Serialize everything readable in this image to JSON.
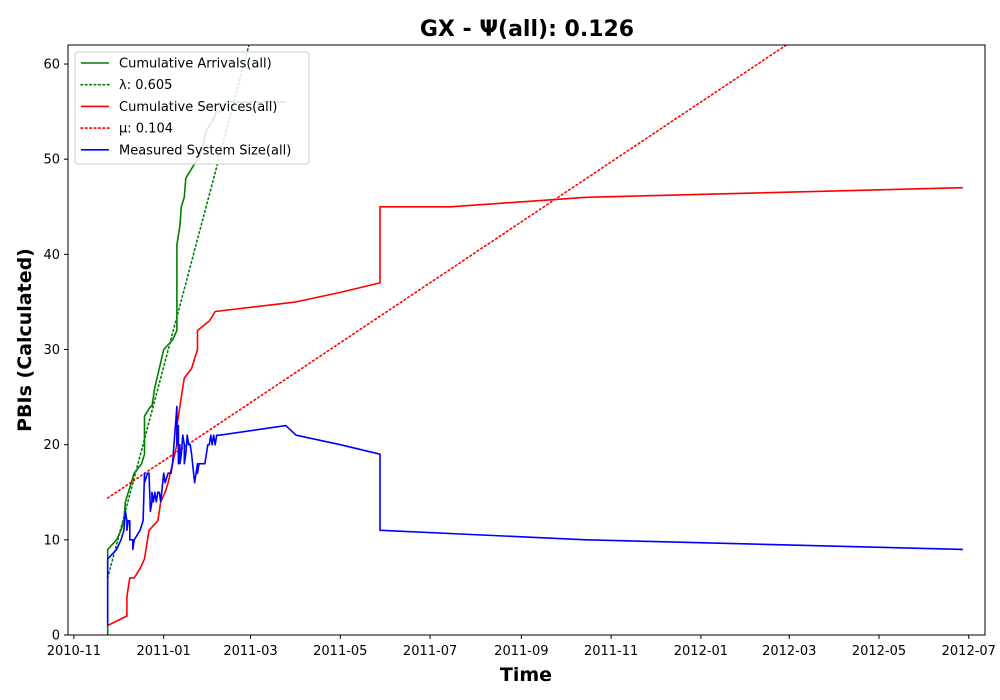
{
  "chart_data": {
    "type": "line",
    "title": "GX -  Ψ(all): 0.126",
    "xlabel": "Time",
    "ylabel": "PBIs (Calculated)",
    "x_axis": "date",
    "xlim": [
      "2010-10-28",
      "2012-07-12"
    ],
    "ylim": [
      0,
      62
    ],
    "grid": false,
    "legend_position": "top-left",
    "x_ticks": [
      "2010-11-01",
      "2011-01-01",
      "2011-03-01",
      "2011-05-01",
      "2011-07-01",
      "2011-09-01",
      "2011-11-01",
      "2012-01-01",
      "2012-03-01",
      "2012-05-01",
      "2012-07-01"
    ],
    "x_tick_labels": [
      "2010-11",
      "2011-01",
      "2011-03",
      "2011-05",
      "2011-07",
      "2011-09",
      "2011-11",
      "2012-01",
      "2012-03",
      "2012-05",
      "2012-07"
    ],
    "y_ticks": [
      0,
      10,
      20,
      30,
      40,
      50,
      60
    ],
    "y_tick_labels": [
      "0",
      "10",
      "20",
      "30",
      "40",
      "50",
      "60"
    ],
    "series": [
      {
        "name": "Cumulative Arrivals(all)",
        "color": "#008000",
        "style": "solid",
        "x": [
          "2010-11-24",
          "2010-11-24",
          "2010-11-30",
          "2010-12-03",
          "2010-12-05",
          "2010-12-06",
          "2010-12-08",
          "2010-12-12",
          "2010-12-17",
          "2010-12-19",
          "2010-12-19",
          "2010-12-23",
          "2010-12-24",
          "2010-12-26",
          "2010-12-29",
          "2011-01-01",
          "2011-01-07",
          "2011-01-10",
          "2011-01-10",
          "2011-01-12",
          "2011-01-13",
          "2011-01-15",
          "2011-01-16",
          "2011-01-20",
          "2011-01-24",
          "2011-01-27",
          "2011-01-30",
          "2011-02-03",
          "2011-02-06",
          "2011-02-09",
          "2011-02-12",
          "2011-02-16",
          "2011-02-22",
          "2011-03-01",
          "2011-03-08",
          "2011-03-15",
          "2011-03-25"
        ],
        "y": [
          0,
          9,
          10,
          11,
          12,
          14,
          15,
          17,
          18,
          19,
          23,
          24,
          24,
          26,
          28,
          30,
          31,
          32,
          41,
          43,
          45,
          46,
          48,
          49,
          50,
          51,
          53,
          54,
          55,
          55,
          56,
          56,
          56,
          56,
          56,
          56,
          56
        ]
      },
      {
        "name": "λ: 0.605",
        "color": "#008000",
        "style": "dotted",
        "x": [
          "2010-11-24",
          "2011-02-28"
        ],
        "y": [
          6,
          62
        ]
      },
      {
        "name": "Cumulative Services(all)",
        "color": "#ff0000",
        "style": "solid",
        "x": [
          "2010-11-24",
          "2010-12-07",
          "2010-12-07",
          "2010-12-08",
          "2010-12-09",
          "2010-12-12",
          "2010-12-16",
          "2010-12-19",
          "2010-12-22",
          "2010-12-28",
          "2010-12-29",
          "2010-12-30",
          "2011-01-02",
          "2011-01-04",
          "2011-01-07",
          "2011-01-10",
          "2011-01-10",
          "2011-01-12",
          "2011-01-13",
          "2011-01-15",
          "2011-01-20",
          "2011-01-24",
          "2011-01-24",
          "2011-02-01",
          "2011-02-05",
          "2011-04-01",
          "2011-05-01",
          "2011-05-28",
          "2011-05-28",
          "2011-07-15",
          "2011-10-15",
          "2012-06-27"
        ],
        "y": [
          1,
          2,
          4,
          5,
          6,
          6,
          7,
          8,
          11,
          12,
          13,
          14,
          15,
          16,
          18,
          20,
          22,
          24,
          25,
          27,
          28,
          30,
          32,
          33,
          34,
          35,
          36,
          37,
          45,
          45,
          46,
          47
        ]
      },
      {
        "name": "μ: 0.104",
        "color": "#ff0000",
        "style": "dotted",
        "x": [
          "2010-11-24",
          "2012-02-28"
        ],
        "y": [
          14.4,
          62
        ]
      },
      {
        "name": "Measured System Size(all)",
        "color": "#0000ff",
        "style": "solid",
        "x": [
          "2010-11-24",
          "2010-11-24",
          "2010-11-30",
          "2010-12-03",
          "2010-12-05",
          "2010-12-06",
          "2010-12-07",
          "2010-12-07",
          "2010-12-08",
          "2010-12-09",
          "2010-12-09",
          "2010-12-11",
          "2010-12-11",
          "2010-12-12",
          "2010-12-16",
          "2010-12-18",
          "2010-12-19",
          "2010-12-19",
          "2010-12-21",
          "2010-12-22",
          "2010-12-23",
          "2010-12-24",
          "2010-12-24",
          "2010-12-25",
          "2010-12-26",
          "2010-12-27",
          "2010-12-28",
          "2010-12-29",
          "2010-12-30",
          "2011-01-01",
          "2011-01-02",
          "2011-01-02",
          "2011-01-04",
          "2011-01-06",
          "2011-01-07",
          "2011-01-10",
          "2011-01-10",
          "2011-01-11",
          "2011-01-11",
          "2011-01-12",
          "2011-01-12",
          "2011-01-13",
          "2011-01-14",
          "2011-01-15",
          "2011-01-15",
          "2011-01-16",
          "2011-01-17",
          "2011-01-18",
          "2011-01-19",
          "2011-01-20",
          "2011-01-22",
          "2011-01-24",
          "2011-01-24",
          "2011-01-25",
          "2011-01-29",
          "2011-01-31",
          "2011-02-01",
          "2011-02-02",
          "2011-02-03",
          "2011-02-04",
          "2011-02-05",
          "2011-02-06",
          "2011-02-08",
          "2011-03-25",
          "2011-04-01",
          "2011-05-01",
          "2011-05-28",
          "2011-05-28",
          "2011-10-15",
          "2012-06-27"
        ],
        "y": [
          1,
          8,
          9,
          10,
          11,
          13,
          12,
          11,
          12,
          12,
          10,
          10,
          9,
          10,
          11,
          12,
          17,
          16,
          17,
          17,
          13,
          14,
          15,
          14,
          15,
          14,
          15,
          15,
          14,
          17,
          16,
          16,
          17,
          17,
          18,
          24,
          20,
          22,
          18,
          20,
          18,
          19,
          21,
          20,
          18,
          19,
          21,
          20,
          20,
          19,
          16,
          18,
          17,
          18,
          18,
          20,
          20,
          21,
          20,
          21,
          20,
          21,
          21,
          22,
          21,
          20,
          19,
          11,
          10,
          9
        ]
      }
    ]
  }
}
